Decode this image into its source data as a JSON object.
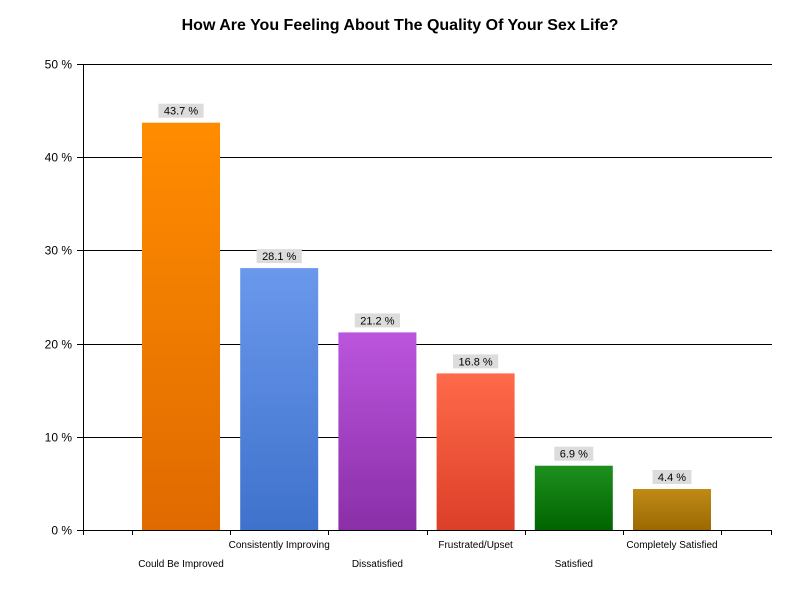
{
  "chart_data": {
    "type": "bar",
    "title": "How Are You Feeling About The Quality Of Your Sex Life?",
    "xlabel": "",
    "ylabel": "",
    "categories": [
      "Could Be Improved",
      "Consistently Improving",
      "Dissatisfied",
      "Frustrated/Upset",
      "Satisfied",
      "Completely Satisfied"
    ],
    "values": [
      43.7,
      28.1,
      21.2,
      16.8,
      6.9,
      4.4
    ],
    "data_labels": [
      "43.7 %",
      "28.1 %",
      "21.2 %",
      "16.8 %",
      "6.9 %",
      "4.4 %"
    ],
    "ylim": [
      0,
      50
    ],
    "yticks": [
      0,
      10,
      20,
      30,
      40,
      50
    ],
    "ytick_labels": [
      "0 %",
      "10 %",
      "20 %",
      "30 %",
      "40 %",
      "50 %"
    ],
    "grid": true,
    "legend": "none",
    "bar_colors": [
      {
        "top": "#ff8c00",
        "bottom": "#e06a00"
      },
      {
        "top": "#6a98ec",
        "bottom": "#3f72cc"
      },
      {
        "top": "#bb55dd",
        "bottom": "#8a2fa8"
      },
      {
        "top": "#ff6a4a",
        "bottom": "#dc3f28"
      },
      {
        "top": "#1e8f1e",
        "bottom": "#006400"
      },
      {
        "top": "#c08a18",
        "bottom": "#9a6a00"
      }
    ],
    "label_bg_color": "#dcdcdc"
  }
}
